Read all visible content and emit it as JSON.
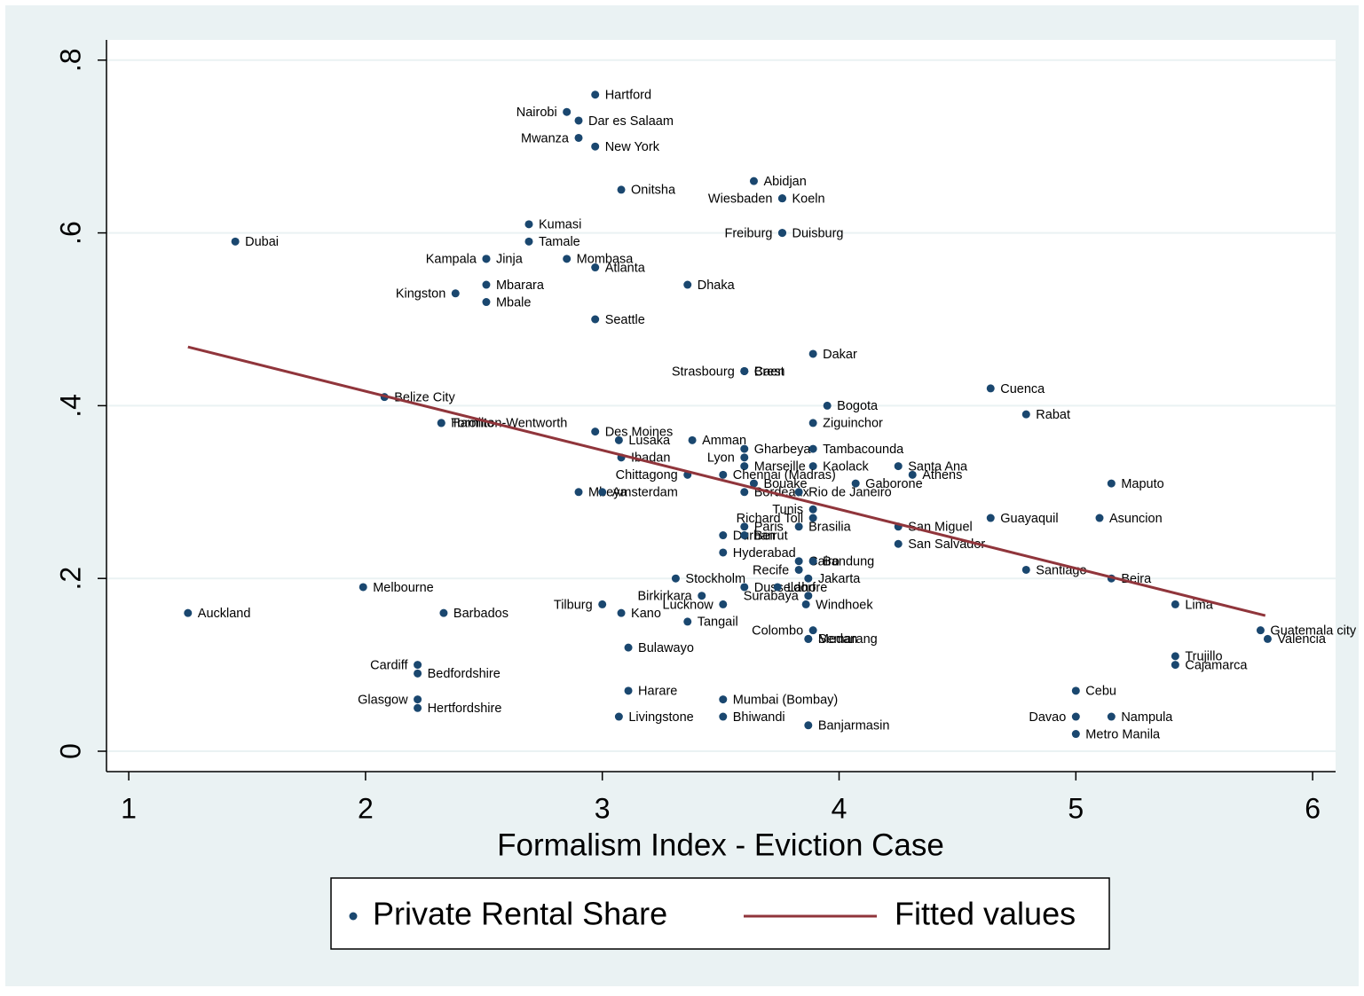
{
  "chart_data": {
    "type": "scatter",
    "x_label": "Formalism Index - Eviction Case",
    "xlim": [
      0.906,
      6.097
    ],
    "ylim": [
      -0.0236,
      0.8234
    ],
    "xticks": [
      1,
      2,
      3,
      4,
      5,
      6
    ],
    "yticks": [
      {
        "value": 0,
        "label": "0"
      },
      {
        "value": 0.2,
        "label": ".2"
      },
      {
        "value": 0.4,
        "label": ".4"
      },
      {
        "value": 0.6,
        "label": ".6"
      },
      {
        "value": 0.8,
        "label": ".8"
      }
    ],
    "grid": true,
    "legend": "bottom",
    "series": [
      {
        "name": "Private Rental Share",
        "type": "scatter",
        "color": "#1a476f",
        "labels": [
          "Hartford",
          "Nairobi",
          "Dar es Salaam",
          "Mwanza",
          "New York",
          "Abidjan",
          "Koeln",
          "Wiesbaden",
          "Onitsha",
          "Kumasi",
          "Tamale",
          "Dubai",
          "Freiburg",
          "Duisburg",
          "Kampala",
          "Jinja",
          "Mombasa",
          "Atlanta",
          "Mbarara",
          "Dhaka",
          "Kingston",
          "Mbale",
          "Seattle",
          "Dakar",
          "Strasbourg",
          "Brest",
          "Caen",
          "Cuenca",
          "Belize City",
          "Bogota",
          "Rabat",
          "Hamilton-Wentworth",
          "Toronto",
          "Ziguinchor",
          "Des Moines",
          "Lusaka",
          "Amman",
          "Gharbeya",
          "Tambacounda",
          "Ibadan",
          "Lyon",
          "Marseille",
          "Kaolack",
          "Santa Ana",
          "Athens",
          "Chittagong",
          "Chennai (Madras)",
          "Bouake",
          "Gaborone",
          "Maputo",
          "Bordeaux",
          "Rio de Janeiro",
          "Mbeya",
          "Amsterdam",
          "Tunis",
          "Guayaquil",
          "Asuncion",
          "Richard Toll",
          "Paris",
          "Brasilia",
          "San Miguel",
          "Durban",
          "Beirut",
          "San Salvador",
          "Hyderabad",
          "Cairo",
          "Bandung",
          "Recife",
          "Santiago",
          "Beira",
          "Stockholm",
          "Jakarta",
          "Melbourne",
          "Dusseldorf",
          "Lahore",
          "Surabaya",
          "Birkirkara",
          "Auckland",
          "Barbados",
          "Tilburg",
          "Lucknow",
          "Windhoek",
          "Kano",
          "Lima",
          "Tangail",
          "Colombo",
          "Guatemala city",
          "Medan",
          "Semarang",
          "Valencia",
          "Bulawayo",
          "Trujillo",
          "Cajamarca",
          "Cardiff",
          "Bedfordshire",
          "Harare",
          "Cebu",
          "Mumbai (Bombay)",
          "Glasgow",
          "Hertfordshire",
          "Livingstone",
          "Bhiwandi",
          "Davao",
          "Nampula",
          "Banjarmasin",
          "Metro Manila"
        ],
        "label_positions": [
          "right",
          "left",
          "right",
          "left",
          "right",
          "right",
          "right",
          "left",
          "right",
          "right",
          "right",
          "right",
          "left",
          "right",
          "left",
          "right",
          "right",
          "right",
          "right",
          "right",
          "left",
          "right",
          "right",
          "right",
          "left",
          "right",
          "right",
          "right",
          "right",
          "right",
          "right",
          "right",
          "right",
          "right",
          "right",
          "right",
          "right",
          "right",
          "right",
          "right",
          "left",
          "right",
          "right",
          "right",
          "right",
          "left",
          "right",
          "right",
          "right",
          "right",
          "right",
          "right",
          "right",
          "right",
          "left",
          "right",
          "right",
          "left",
          "right",
          "right",
          "right",
          "right",
          "right",
          "right",
          "right",
          "right",
          "right",
          "left",
          "right",
          "right",
          "right",
          "right",
          "right",
          "right",
          "right",
          "left",
          "left",
          "right",
          "right",
          "left",
          "left",
          "right",
          "right",
          "right",
          "right",
          "left",
          "right",
          "right",
          "right",
          "right",
          "right",
          "right",
          "right",
          "left",
          "right",
          "right",
          "right",
          "right",
          "left",
          "right",
          "right",
          "right",
          "left",
          "right",
          "right",
          "right"
        ],
        "x": [
          2.97,
          2.85,
          2.9,
          2.9,
          2.97,
          3.64,
          3.76,
          3.76,
          3.08,
          2.69,
          2.69,
          1.45,
          3.76,
          3.76,
          2.51,
          2.51,
          2.85,
          2.97,
          2.51,
          3.36,
          2.38,
          2.51,
          2.97,
          3.89,
          3.6,
          3.6,
          3.6,
          4.64,
          2.08,
          3.95,
          4.79,
          2.32,
          2.32,
          3.89,
          2.97,
          3.07,
          3.38,
          3.6,
          3.89,
          3.08,
          3.6,
          3.6,
          3.89,
          4.25,
          4.31,
          3.36,
          3.51,
          3.64,
          4.07,
          5.15,
          3.6,
          3.83,
          2.9,
          3.0,
          3.89,
          4.64,
          5.1,
          3.89,
          3.6,
          3.83,
          4.25,
          3.51,
          3.6,
          4.25,
          3.51,
          3.83,
          3.89,
          3.83,
          4.79,
          5.15,
          3.31,
          3.87,
          1.99,
          3.6,
          3.74,
          3.87,
          3.42,
          1.25,
          2.33,
          3.0,
          3.51,
          3.86,
          3.08,
          5.42,
          3.36,
          3.89,
          5.78,
          3.87,
          3.87,
          5.81,
          3.11,
          5.42,
          5.42,
          2.22,
          2.22,
          3.11,
          5.0,
          3.51,
          2.22,
          2.22,
          3.07,
          3.51,
          5.0,
          5.15,
          3.87,
          5.0
        ],
        "values": [
          0.76,
          0.74,
          0.73,
          0.71,
          0.7,
          0.66,
          0.64,
          0.64,
          0.65,
          0.61,
          0.59,
          0.59,
          0.6,
          0.6,
          0.57,
          0.57,
          0.57,
          0.56,
          0.54,
          0.54,
          0.53,
          0.52,
          0.5,
          0.46,
          0.44,
          0.44,
          0.44,
          0.42,
          0.41,
          0.4,
          0.39,
          0.38,
          0.38,
          0.38,
          0.37,
          0.36,
          0.36,
          0.35,
          0.35,
          0.34,
          0.34,
          0.33,
          0.33,
          0.33,
          0.32,
          0.32,
          0.32,
          0.31,
          0.31,
          0.31,
          0.3,
          0.3,
          0.3,
          0.3,
          0.28,
          0.27,
          0.27,
          0.27,
          0.26,
          0.26,
          0.26,
          0.25,
          0.25,
          0.24,
          0.23,
          0.22,
          0.22,
          0.21,
          0.21,
          0.2,
          0.2,
          0.2,
          0.19,
          0.19,
          0.19,
          0.18,
          0.18,
          0.16,
          0.16,
          0.17,
          0.17,
          0.17,
          0.16,
          0.17,
          0.15,
          0.14,
          0.14,
          0.13,
          0.13,
          0.13,
          0.12,
          0.11,
          0.1,
          0.1,
          0.09,
          0.07,
          0.07,
          0.06,
          0.06,
          0.05,
          0.04,
          0.04,
          0.04,
          0.04,
          0.03,
          0.02
        ]
      },
      {
        "name": "Fitted values",
        "type": "line",
        "color": "#90353b",
        "x": [
          1.25,
          5.8
        ],
        "values": [
          0.468,
          0.157
        ]
      }
    ]
  }
}
